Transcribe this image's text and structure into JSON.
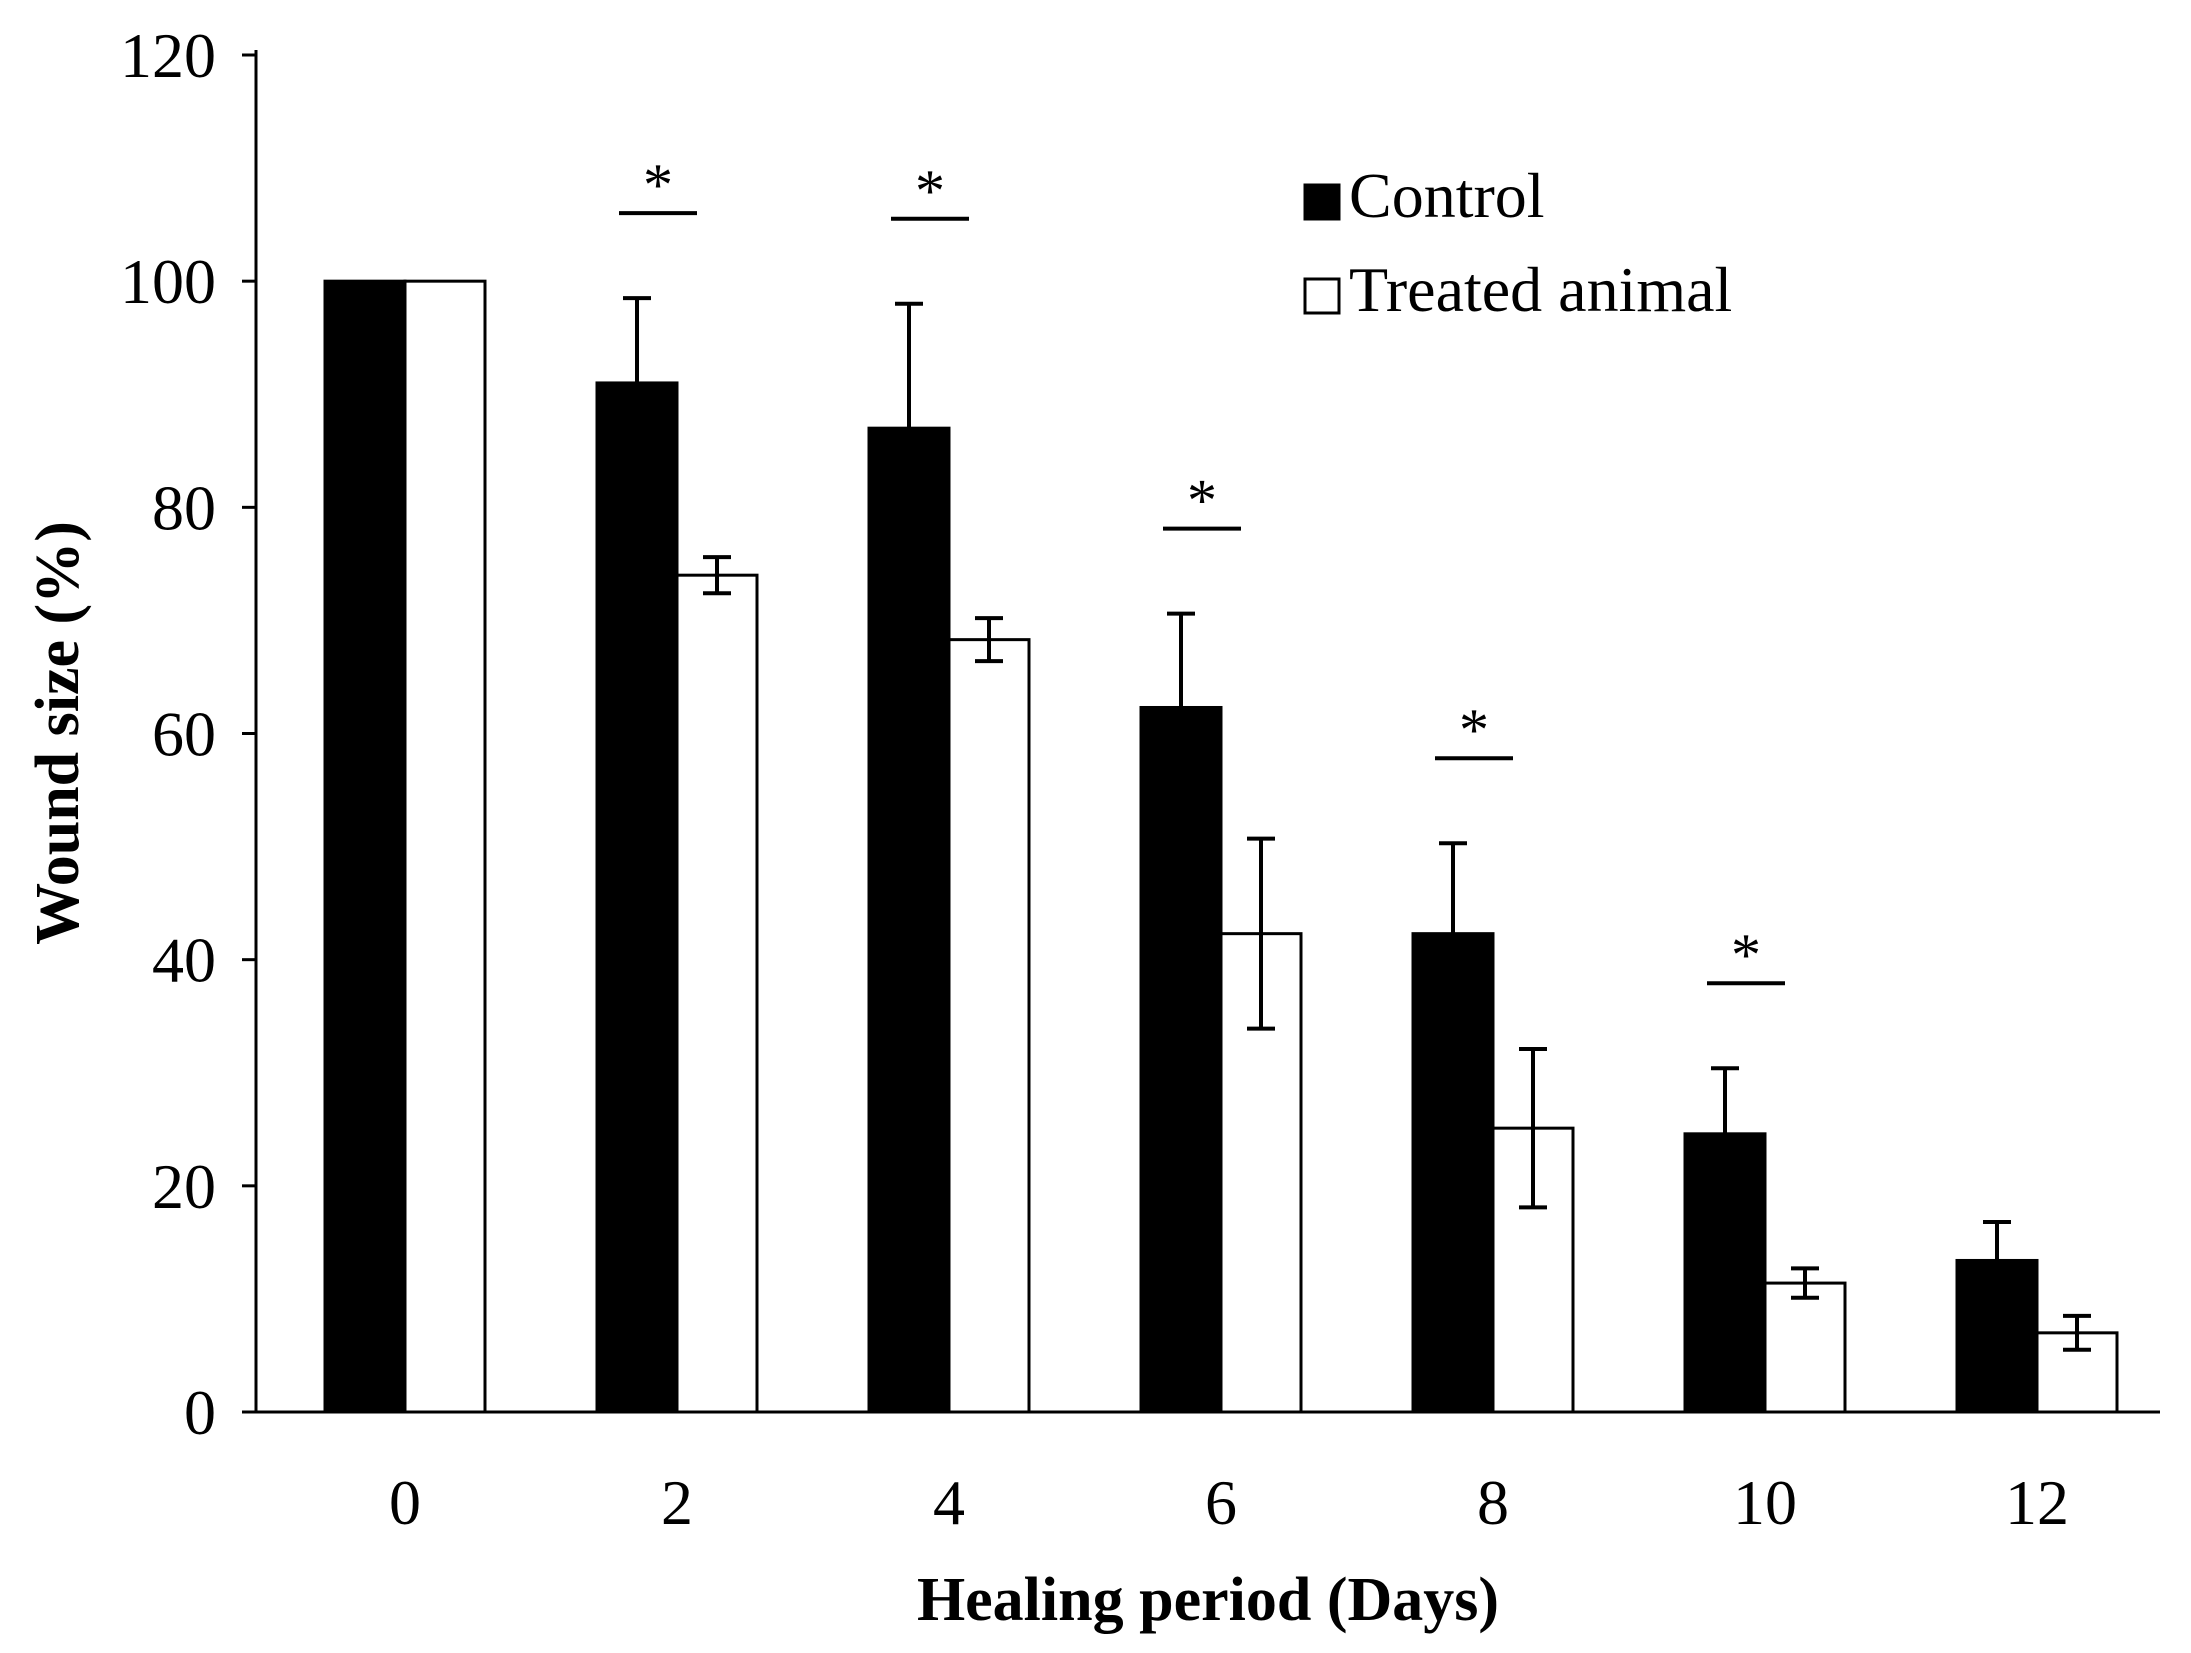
{
  "chart_data": {
    "type": "bar",
    "title": "",
    "xlabel": "Healing period (Days)",
    "ylabel": "Wound size (%)",
    "ylim": [
      0,
      120
    ],
    "yticks": [
      0,
      20,
      40,
      60,
      80,
      100,
      120
    ],
    "categories": [
      "0",
      "2",
      "4",
      "6",
      "8",
      "10",
      "12"
    ],
    "series": [
      {
        "name": "Control",
        "fill": "#000000",
        "values": [
          100,
          91,
          87,
          62.3,
          42.3,
          24.6,
          13.4
        ],
        "error": [
          0,
          7.5,
          11,
          8.3,
          8,
          5.8,
          3.4
        ]
      },
      {
        "name": "Treated animal",
        "fill": "#ffffff",
        "values": [
          100,
          74,
          68.3,
          42.3,
          25.1,
          11.4,
          7
        ],
        "error": [
          0,
          1.6,
          1.9,
          8.4,
          7,
          1.3,
          1.5
        ]
      }
    ],
    "significance": [
      {
        "category": "2",
        "label": "*"
      },
      {
        "category": "4",
        "label": "*"
      },
      {
        "category": "6",
        "label": "*"
      },
      {
        "category": "8",
        "label": "*"
      },
      {
        "category": "10",
        "label": "*"
      }
    ],
    "legend_position": "top-right",
    "grid": false
  }
}
